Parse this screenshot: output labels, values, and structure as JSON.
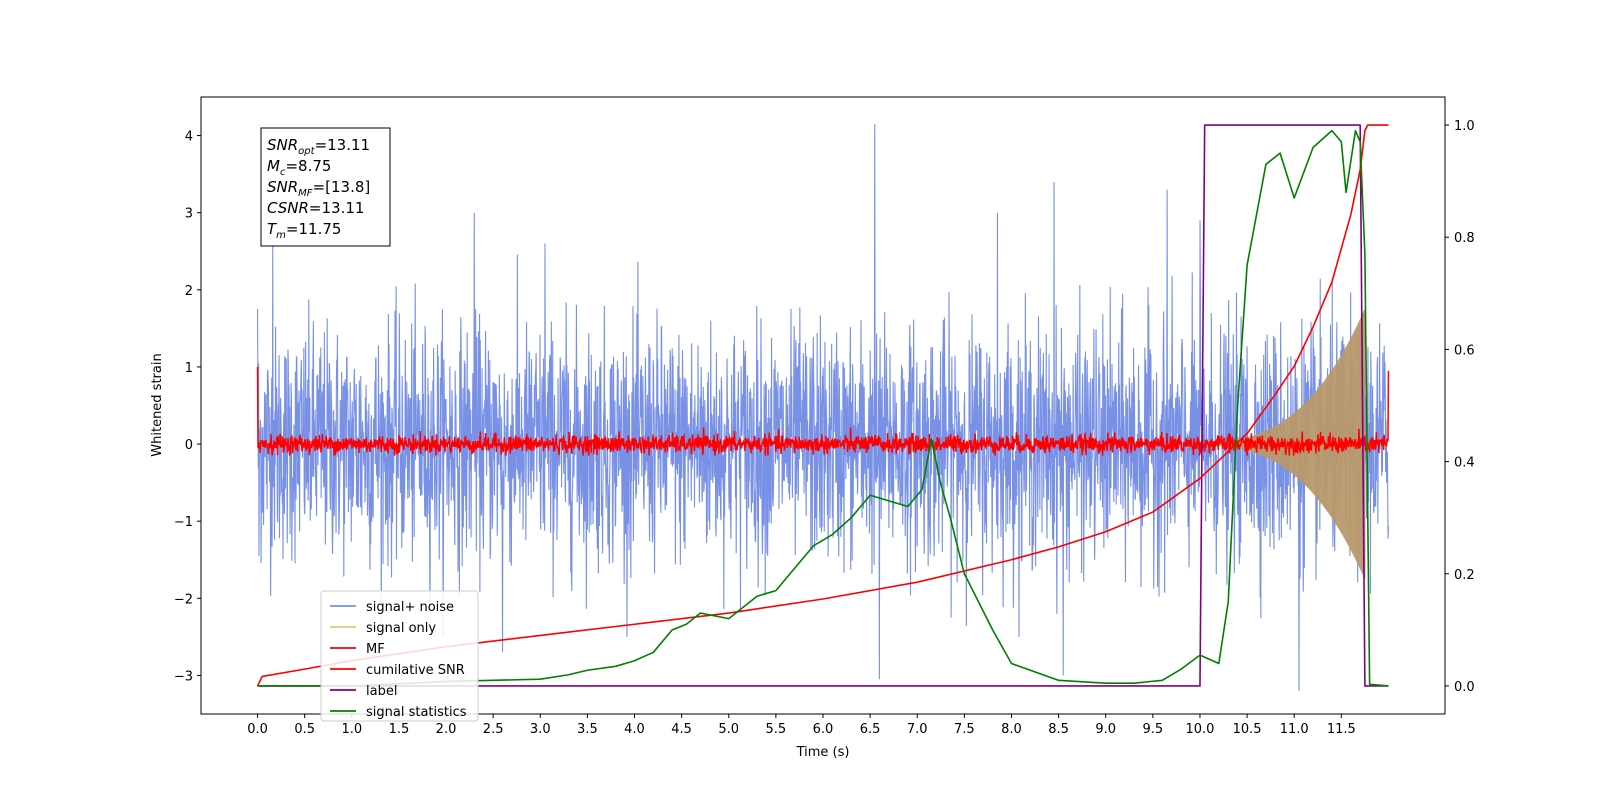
{
  "chart_data": {
    "type": "line",
    "xlabel": "Time (s)",
    "ylabel": "Whitened strain",
    "xlim": [
      -0.6,
      12.6
    ],
    "ylim": [
      -3.5,
      4.5
    ],
    "ylim_right": [
      -0.05,
      1.05
    ],
    "xticks": [
      0.0,
      0.5,
      1.0,
      1.5,
      2.0,
      2.5,
      3.0,
      3.5,
      4.0,
      4.5,
      5.0,
      5.5,
      6.0,
      6.5,
      7.0,
      7.5,
      8.0,
      8.5,
      9.0,
      9.5,
      10.0,
      10.5,
      11.0,
      11.5
    ],
    "xtick_labels": [
      "0.0",
      "0.5",
      "1.0",
      "1.5",
      "2.0",
      "2.5",
      "3.0",
      "3.5",
      "4.0",
      "4.5",
      "5.0",
      "5.5",
      "6.0",
      "6.5",
      "7.0",
      "7.5",
      "8.0",
      "8.5",
      "9.0",
      "9.5",
      "10.0",
      "10.5",
      "11.0",
      "11.5"
    ],
    "yticks": [
      -3,
      -2,
      -1,
      0,
      1,
      2,
      3,
      4
    ],
    "ytick_labels": [
      "−3",
      "−2",
      "−1",
      "0",
      "1",
      "2",
      "3",
      "4"
    ],
    "yticks_right": [
      0.0,
      0.2,
      0.4,
      0.6,
      0.8,
      1.0
    ],
    "ytick_labels_right": [
      "0.0",
      "0.2",
      "0.4",
      "0.6",
      "0.8",
      "1.0"
    ],
    "grid": false,
    "legend_position": "lower-left",
    "annotation": [
      {
        "base": "SNR",
        "sub": "opt",
        "value": "=13.11"
      },
      {
        "base": "M",
        "sub": "c",
        "value": "=8.75"
      },
      {
        "base": "SNR",
        "sub": "MF",
        "value": "=[13.8]"
      },
      {
        "base": "CSNR",
        "sub": "",
        "value": "=13.11"
      },
      {
        "base": "T",
        "sub": "m",
        "value": "=11.75"
      }
    ],
    "series": [
      {
        "name": "signal+ noise",
        "axis": "left",
        "color": "#7891e6",
        "kind": "noise",
        "t_range": [
          0.0,
          12.0
        ],
        "envelope_sigma": 0.75,
        "peaks": [
          [
            0.16,
            2.6
          ],
          [
            6.55,
            4.15
          ],
          [
            8.45,
            3.4
          ],
          [
            2.3,
            3.0
          ],
          [
            6.6,
            -3.05
          ],
          [
            11.05,
            -3.2
          ],
          [
            10.0,
            2.9
          ],
          [
            3.05,
            2.6
          ],
          [
            7.85,
            3.0
          ],
          [
            9.65,
            3.3
          ],
          [
            8.55,
            -3.0
          ],
          [
            2.6,
            -2.7
          ]
        ]
      },
      {
        "name": "signal only",
        "axis": "left",
        "color": "#f5c36b",
        "kind": "chirp",
        "t_range": [
          9.8,
          11.75
        ],
        "amplitude_end": 1.75
      },
      {
        "name": "MF",
        "axis": "left",
        "color": "#ff0000",
        "kind": "mf",
        "t_range": [
          0.0,
          12.0
        ],
        "start_value": 1.0,
        "end_value": 0.95,
        "noise_sigma": 0.06
      },
      {
        "name": "cumilative SNR",
        "axis": "right",
        "color": "#ff0000",
        "kind": "line",
        "x": [
          0.0,
          0.05,
          0.5,
          1.0,
          2.0,
          3.0,
          4.0,
          5.0,
          6.0,
          7.0,
          8.0,
          8.5,
          9.0,
          9.5,
          10.0,
          10.5,
          10.8,
          11.0,
          11.2,
          11.4,
          11.6,
          11.7,
          11.75,
          11.78,
          12.0
        ],
        "y": [
          0.0,
          0.017,
          0.03,
          0.045,
          0.07,
          0.09,
          0.11,
          0.13,
          0.155,
          0.185,
          0.225,
          0.248,
          0.275,
          0.31,
          0.37,
          0.45,
          0.52,
          0.57,
          0.64,
          0.72,
          0.84,
          0.92,
          0.99,
          1.0,
          1.0
        ]
      },
      {
        "name": "label",
        "axis": "right",
        "color": "#800080",
        "kind": "line",
        "x": [
          0.0,
          10.0,
          10.05,
          11.7,
          11.75,
          12.0
        ],
        "y": [
          0.0,
          0.0,
          1.0,
          1.0,
          0.0,
          0.0
        ]
      },
      {
        "name": "signal statistics",
        "axis": "right",
        "color": "#008000",
        "kind": "line",
        "x": [
          0.0,
          1.0,
          2.0,
          2.5,
          3.0,
          3.3,
          3.5,
          3.8,
          4.0,
          4.2,
          4.4,
          4.55,
          4.7,
          5.0,
          5.3,
          5.5,
          5.7,
          5.9,
          6.1,
          6.3,
          6.5,
          6.7,
          6.9,
          7.05,
          7.15,
          7.25,
          7.35,
          7.5,
          7.8,
          8.0,
          8.5,
          9.0,
          9.3,
          9.6,
          9.8,
          10.0,
          10.2,
          10.3,
          10.4,
          10.5,
          10.7,
          10.85,
          11.0,
          11.2,
          11.4,
          11.5,
          11.55,
          11.65,
          11.7,
          11.75,
          11.8,
          12.0
        ],
        "y": [
          0.0,
          0.0,
          0.008,
          0.01,
          0.012,
          0.02,
          0.028,
          0.035,
          0.045,
          0.06,
          0.1,
          0.11,
          0.13,
          0.12,
          0.16,
          0.17,
          0.21,
          0.25,
          0.27,
          0.3,
          0.34,
          0.33,
          0.32,
          0.35,
          0.44,
          0.36,
          0.3,
          0.2,
          0.1,
          0.04,
          0.01,
          0.005,
          0.005,
          0.01,
          0.03,
          0.055,
          0.04,
          0.15,
          0.5,
          0.75,
          0.93,
          0.95,
          0.87,
          0.96,
          0.99,
          0.97,
          0.88,
          0.99,
          0.97,
          0.77,
          0.003,
          0.0
        ]
      }
    ]
  }
}
